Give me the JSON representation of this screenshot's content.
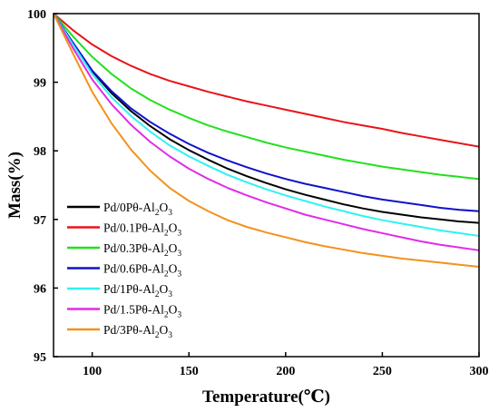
{
  "chart_data": {
    "type": "line",
    "title": "",
    "xlabel": "Temperature(℃)",
    "ylabel": "Mass(%)",
    "xlim": [
      80,
      300
    ],
    "ylim": [
      95,
      100
    ],
    "xticks": [
      100,
      150,
      200,
      250,
      300
    ],
    "yticks": [
      95,
      96,
      97,
      98,
      99,
      100
    ],
    "grid": false,
    "legend_position": "lower-left",
    "x": [
      80,
      90,
      100,
      110,
      120,
      130,
      140,
      150,
      160,
      170,
      180,
      190,
      200,
      210,
      220,
      230,
      240,
      250,
      260,
      270,
      280,
      290,
      300
    ],
    "series": [
      {
        "name": "Pd/0Pθ-Al",
        "sub1": "2",
        "mid": "O",
        "sub2": "3",
        "color": "#000000",
        "values": [
          100.0,
          99.57,
          99.16,
          98.84,
          98.58,
          98.36,
          98.17,
          98.01,
          97.87,
          97.74,
          97.63,
          97.53,
          97.44,
          97.36,
          97.29,
          97.22,
          97.16,
          97.11,
          97.07,
          97.03,
          97.0,
          96.97,
          96.95
        ]
      },
      {
        "name": "Pd/0.1Pθ-Al",
        "sub1": "2",
        "mid": "O",
        "sub2": "3",
        "color": "#e8141b",
        "values": [
          100.0,
          99.76,
          99.55,
          99.38,
          99.24,
          99.12,
          99.02,
          98.94,
          98.86,
          98.79,
          98.72,
          98.66,
          98.6,
          98.54,
          98.48,
          98.42,
          98.37,
          98.32,
          98.26,
          98.21,
          98.16,
          98.11,
          98.06
        ]
      },
      {
        "name": "Pd/0.3Pθ-Al",
        "sub1": "2",
        "mid": "O",
        "sub2": "3",
        "color": "#22e01e",
        "values": [
          100.0,
          99.67,
          99.37,
          99.12,
          98.91,
          98.74,
          98.6,
          98.48,
          98.37,
          98.28,
          98.2,
          98.12,
          98.05,
          97.99,
          97.93,
          97.87,
          97.82,
          97.77,
          97.73,
          97.69,
          97.65,
          97.62,
          97.59
        ]
      },
      {
        "name": "Pd/0.6Pθ-Al",
        "sub1": "2",
        "mid": "O",
        "sub2": "3",
        "color": "#1212c8",
        "values": [
          100.0,
          99.58,
          99.17,
          98.87,
          98.62,
          98.42,
          98.25,
          98.1,
          97.97,
          97.86,
          97.76,
          97.67,
          97.59,
          97.52,
          97.46,
          97.4,
          97.34,
          97.29,
          97.25,
          97.21,
          97.17,
          97.14,
          97.12
        ]
      },
      {
        "name": "Pd/1Pθ-Al",
        "sub1": "2",
        "mid": "O",
        "sub2": "3",
        "color": "#2ff2f2",
        "values": [
          100.0,
          99.55,
          99.12,
          98.78,
          98.51,
          98.28,
          98.08,
          97.92,
          97.78,
          97.65,
          97.54,
          97.44,
          97.35,
          97.27,
          97.19,
          97.12,
          97.05,
          96.99,
          96.94,
          96.89,
          96.84,
          96.8,
          96.76
        ]
      },
      {
        "name": "Pd/1.5Pθ-Al",
        "sub1": "2",
        "mid": "O",
        "sub2": "3",
        "color": "#e02ce8",
        "values": [
          100.0,
          99.5,
          99.04,
          98.68,
          98.38,
          98.13,
          97.92,
          97.74,
          97.59,
          97.46,
          97.35,
          97.25,
          97.16,
          97.07,
          97.0,
          96.93,
          96.86,
          96.8,
          96.74,
          96.68,
          96.63,
          96.59,
          96.55
        ]
      },
      {
        "name": "Pd/3Pθ-Al",
        "sub1": "2",
        "mid": "O",
        "sub2": "3",
        "color": "#f2921c",
        "values": [
          100.0,
          99.42,
          98.86,
          98.4,
          98.02,
          97.71,
          97.46,
          97.27,
          97.12,
          96.99,
          96.89,
          96.81,
          96.74,
          96.67,
          96.61,
          96.56,
          96.51,
          96.47,
          96.43,
          96.4,
          96.37,
          96.34,
          96.31
        ]
      }
    ]
  }
}
